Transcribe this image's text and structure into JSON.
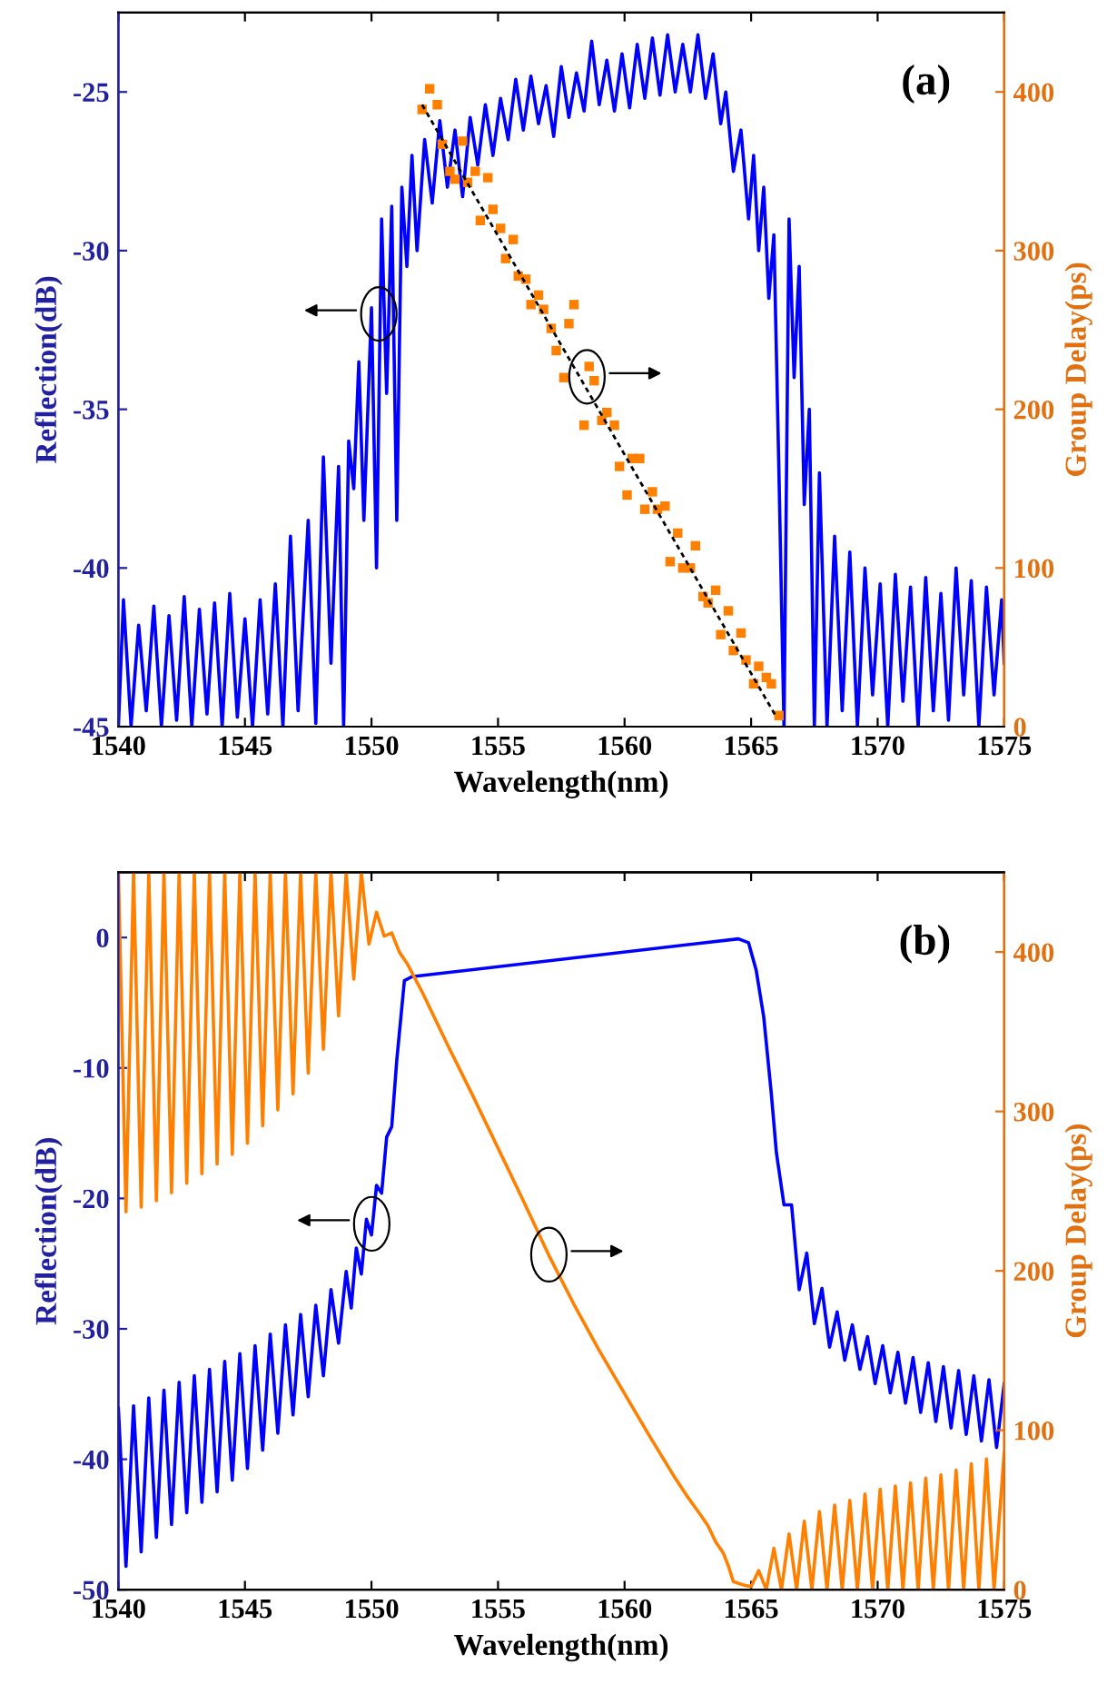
{
  "chart_data": [
    {
      "type": "line",
      "xlabel": "Wavelength(nm)",
      "ylabel": "Reflection(dB)",
      "y2label": "Group Delay(ps)",
      "annotations": [
        "(a)"
      ],
      "xlim": [
        1540,
        1575
      ],
      "xticks": [
        1540,
        1545,
        1550,
        1555,
        1560,
        1565,
        1570,
        1575
      ],
      "ylim": [
        -45,
        -22.5
      ],
      "yticks": [
        -45,
        -40,
        -35,
        -30,
        -25
      ],
      "y2lim": [
        0,
        450
      ],
      "y2ticks": [
        0,
        100,
        200,
        300,
        400
      ],
      "grid": false,
      "series": [
        {
          "color": "#0000ff",
          "x": [
            1540.0,
            1540.2,
            1540.5,
            1540.8,
            1541.1,
            1541.4,
            1541.7,
            1542.0,
            1542.3,
            1542.6,
            1542.9,
            1543.2,
            1543.5,
            1543.8,
            1544.1,
            1544.4,
            1544.7,
            1545.0,
            1545.3,
            1545.6,
            1545.9,
            1546.2,
            1546.5,
            1546.8,
            1547.1,
            1547.5,
            1547.8,
            1548.1,
            1548.4,
            1548.7,
            1548.9,
            1549.1,
            1549.3,
            1549.5,
            1549.7,
            1550.0,
            1550.2,
            1550.4,
            1550.6,
            1550.8,
            1551.0,
            1551.2,
            1551.4,
            1551.6,
            1551.8,
            1552.1,
            1552.4,
            1552.7,
            1553.0,
            1553.3,
            1553.6,
            1553.9,
            1554.2,
            1554.5,
            1554.8,
            1555.1,
            1555.4,
            1555.7,
            1556.0,
            1556.3,
            1556.6,
            1556.9,
            1557.2,
            1557.5,
            1557.8,
            1558.1,
            1558.4,
            1558.7,
            1559.0,
            1559.3,
            1559.6,
            1559.9,
            1560.2,
            1560.5,
            1560.8,
            1561.1,
            1561.4,
            1561.7,
            1562.0,
            1562.3,
            1562.6,
            1562.9,
            1563.2,
            1563.5,
            1563.8,
            1564.0,
            1564.3,
            1564.6,
            1564.9,
            1565.1,
            1565.3,
            1565.5,
            1565.7,
            1565.9,
            1566.1,
            1566.3,
            1566.5,
            1566.7,
            1566.9,
            1567.1,
            1567.3,
            1567.5,
            1567.7,
            1568.0,
            1568.3,
            1568.6,
            1568.9,
            1569.2,
            1569.5,
            1569.8,
            1570.1,
            1570.4,
            1570.7,
            1571.0,
            1571.3,
            1571.6,
            1571.9,
            1572.2,
            1572.5,
            1572.8,
            1573.1,
            1573.4,
            1573.7,
            1574.0,
            1574.3,
            1574.6,
            1574.9,
            1575.0
          ],
          "values": [
            -45,
            -41.0,
            -45,
            -41.8,
            -44.5,
            -41.2,
            -45,
            -41.5,
            -44.8,
            -40.9,
            -45,
            -41.3,
            -44.6,
            -41.1,
            -45,
            -40.8,
            -44.7,
            -41.6,
            -45,
            -41.0,
            -44.6,
            -40.5,
            -45,
            -39.0,
            -44.5,
            -38.5,
            -44.9,
            -36.5,
            -43.0,
            -36.8,
            -45,
            -36.0,
            -37.5,
            -33.5,
            -38.5,
            -31.8,
            -40.0,
            -29.0,
            -34.5,
            -28.6,
            -38.5,
            -28.0,
            -30.5,
            -27.0,
            -30.0,
            -26.5,
            -28.5,
            -25.9,
            -28.0,
            -26.2,
            -28.3,
            -25.8,
            -27.3,
            -25.4,
            -27.0,
            -25.2,
            -26.5,
            -24.6,
            -26.2,
            -24.5,
            -26.0,
            -24.8,
            -26.4,
            -24.2,
            -25.8,
            -24.4,
            -25.6,
            -23.4,
            -25.4,
            -24.0,
            -25.6,
            -23.8,
            -25.5,
            -23.5,
            -25.2,
            -23.3,
            -25.1,
            -23.2,
            -25.0,
            -23.5,
            -25.0,
            -23.2,
            -25.2,
            -23.8,
            -26.0,
            -25.0,
            -27.5,
            -26.2,
            -29.0,
            -27.0,
            -30.0,
            -28.0,
            -31.5,
            -29.5,
            -37.0,
            -45,
            -29.0,
            -34.0,
            -30.5,
            -38.0,
            -35.0,
            -45,
            -37.0,
            -45,
            -39.0,
            -44.5,
            -39.5,
            -45,
            -40.0,
            -44.0,
            -40.5,
            -45,
            -40.2,
            -44.2,
            -40.6,
            -45,
            -40.3,
            -44.5,
            -40.8,
            -44.8,
            -40.0,
            -44.0,
            -40.4,
            -45,
            -40.6,
            -44.0,
            -41.0,
            -43.0
          ]
        },
        {
          "type": "scatter",
          "axis": "y2",
          "marker": "square",
          "color": "#ff8000",
          "x": [
            1552.0,
            1552.3,
            1552.6,
            1552.8,
            1553.6,
            1553.1,
            1553.3,
            1553.8,
            1554.1,
            1554.6,
            1554.3,
            1554.8,
            1555.1,
            1555.6,
            1555.3,
            1555.8,
            1556.1,
            1556.6,
            1556.3,
            1556.8,
            1558.0,
            1557.8,
            1557.1,
            1557.3,
            1557.6,
            1558.6,
            1558.8,
            1558.4,
            1559.1,
            1559.3,
            1559.6,
            1559.8,
            1560.3,
            1560.6,
            1560.1,
            1561.1,
            1560.8,
            1561.3,
            1561.6,
            1562.1,
            1561.8,
            1562.3,
            1562.6,
            1562.8,
            1563.1,
            1563.3,
            1563.6,
            1564.1,
            1563.8,
            1564.6,
            1564.3,
            1564.8,
            1565.3,
            1565.6,
            1565.1,
            1565.8,
            1566.1
          ],
          "values": [
            389,
            402,
            392,
            367,
            369,
            350,
            345,
            343,
            350,
            346,
            319,
            326,
            314,
            307,
            295,
            284,
            282,
            272,
            266,
            263,
            266,
            254,
            251,
            237,
            220,
            227,
            218,
            190,
            193,
            198,
            190,
            164,
            169,
            169,
            146,
            148,
            137,
            137,
            139,
            122,
            104,
            100,
            100,
            114,
            82,
            78,
            86,
            73,
            58,
            59,
            48,
            42,
            38,
            31,
            27,
            27,
            7
          ]
        },
        {
          "type": "line",
          "axis": "y2",
          "line_style": "dashed",
          "color": "#000000",
          "x": [
            1552.0,
            1566.0
          ],
          "values": [
            392,
            6
          ]
        }
      ]
    },
    {
      "type": "line",
      "xlabel": "Wavelength(nm)",
      "ylabel": "Reflection(dB)",
      "y2label": "Group Delay(ps)",
      "annotations": [
        "(b)"
      ],
      "xlim": [
        1540,
        1575
      ],
      "xticks": [
        1540,
        1545,
        1550,
        1555,
        1560,
        1565,
        1570,
        1575
      ],
      "ylim": [
        -50,
        5
      ],
      "yticks": [
        -50,
        -40,
        -30,
        -20,
        -10,
        0
      ],
      "y2lim": [
        0,
        450
      ],
      "y2ticks": [
        0,
        100,
        200,
        300,
        400
      ],
      "grid": false,
      "series": [
        {
          "color": "#0000ff",
          "x": [
            1540.0,
            1540.3,
            1540.6,
            1540.9,
            1541.2,
            1541.5,
            1541.8,
            1542.1,
            1542.4,
            1542.7,
            1543.0,
            1543.3,
            1543.6,
            1543.9,
            1544.2,
            1544.5,
            1544.8,
            1545.1,
            1545.4,
            1545.7,
            1546.0,
            1546.3,
            1546.6,
            1546.9,
            1547.2,
            1547.5,
            1547.8,
            1548.1,
            1548.4,
            1548.7,
            1549.0,
            1549.2,
            1549.4,
            1549.6,
            1549.8,
            1550.0,
            1550.2,
            1550.4,
            1550.6,
            1550.8,
            1551.0,
            1551.3,
            1551.6,
            1564.5,
            1564.9,
            1565.2,
            1565.5,
            1565.8,
            1566.0,
            1566.3,
            1566.6,
            1566.9,
            1567.2,
            1567.5,
            1567.8,
            1568.1,
            1568.4,
            1568.7,
            1569.0,
            1569.3,
            1569.6,
            1569.9,
            1570.2,
            1570.5,
            1570.8,
            1571.1,
            1571.4,
            1571.7,
            1572.0,
            1572.3,
            1572.6,
            1572.9,
            1573.2,
            1573.5,
            1573.8,
            1574.1,
            1574.4,
            1574.7,
            1575.0
          ],
          "values": [
            -36.1,
            -48.2,
            -35.9,
            -47.1,
            -35.3,
            -46.0,
            -34.7,
            -45.0,
            -34.1,
            -44.1,
            -33.6,
            -43.3,
            -33.1,
            -42.5,
            -32.5,
            -41.6,
            -31.9,
            -40.7,
            -31.3,
            -39.3,
            -30.4,
            -38.0,
            -29.7,
            -36.6,
            -28.9,
            -35.2,
            -28.2,
            -33.6,
            -27.0,
            -31.1,
            -25.6,
            -28.4,
            -23.8,
            -25.8,
            -21.6,
            -22.8,
            -19.0,
            -19.6,
            -15.3,
            -14.5,
            -9.4,
            -3.3,
            -3.0,
            -0.1,
            -0.4,
            -2.5,
            -6.1,
            -12.0,
            -16.5,
            -20.5,
            -20.5,
            -27.0,
            -24.2,
            -29.6,
            -26.9,
            -31.4,
            -28.7,
            -32.4,
            -29.7,
            -33.1,
            -30.6,
            -34.2,
            -31.3,
            -34.9,
            -31.8,
            -35.7,
            -32.2,
            -36.4,
            -32.6,
            -37.1,
            -32.9,
            -37.6,
            -33.2,
            -38.1,
            -33.6,
            -38.6,
            -33.9,
            -39.1,
            -34.2
          ]
        },
        {
          "axis": "y2",
          "color": "#ff8000",
          "x": [
            1540.0,
            1540.3,
            1540.6,
            1540.9,
            1541.2,
            1541.5,
            1541.8,
            1542.1,
            1542.4,
            1542.7,
            1543.0,
            1543.3,
            1543.6,
            1543.9,
            1544.2,
            1544.5,
            1544.8,
            1545.1,
            1545.4,
            1545.7,
            1546.0,
            1546.3,
            1546.6,
            1546.9,
            1547.2,
            1547.5,
            1547.8,
            1548.1,
            1548.4,
            1548.7,
            1549.0,
            1549.3,
            1549.6,
            1549.9,
            1550.2,
            1550.5,
            1550.8,
            1551.1,
            1551.4,
            1552,
            1553,
            1554,
            1555,
            1556,
            1557,
            1558,
            1559,
            1560,
            1561,
            1562,
            1562.5,
            1563,
            1563.3,
            1563.6,
            1563.9,
            1564.1,
            1564.3,
            1564.7,
            1565.0,
            1565.3,
            1565.6,
            1565.9,
            1566.2,
            1566.5,
            1566.8,
            1567.1,
            1567.4,
            1567.7,
            1568.0,
            1568.3,
            1568.6,
            1568.9,
            1569.2,
            1569.5,
            1569.8,
            1570.1,
            1570.4,
            1570.7,
            1571.0,
            1571.3,
            1571.6,
            1571.9,
            1572.2,
            1572.5,
            1572.8,
            1573.1,
            1573.4,
            1573.7,
            1574.0,
            1574.3,
            1574.6,
            1575.0
          ],
          "values": [
            450,
            237,
            450,
            240,
            450,
            244,
            450,
            249,
            450,
            255,
            450,
            261,
            450,
            267,
            450,
            273,
            450,
            280,
            450,
            291,
            450,
            301,
            450,
            311,
            450,
            324,
            450,
            339,
            450,
            360,
            450,
            383,
            450,
            405,
            425,
            410,
            412,
            400,
            393,
            375,
            342,
            310,
            277,
            244,
            210,
            179,
            150,
            123,
            96,
            70,
            58,
            47,
            40,
            30,
            23,
            15,
            5,
            3,
            2,
            12,
            0,
            26,
            0,
            35,
            0,
            43,
            0,
            49,
            0,
            53,
            0,
            56,
            0,
            60,
            0,
            63,
            0,
            65,
            0,
            67,
            0,
            70,
            0,
            72,
            0,
            75,
            0,
            79,
            0,
            82,
            0,
            86
          ]
        }
      ]
    }
  ]
}
